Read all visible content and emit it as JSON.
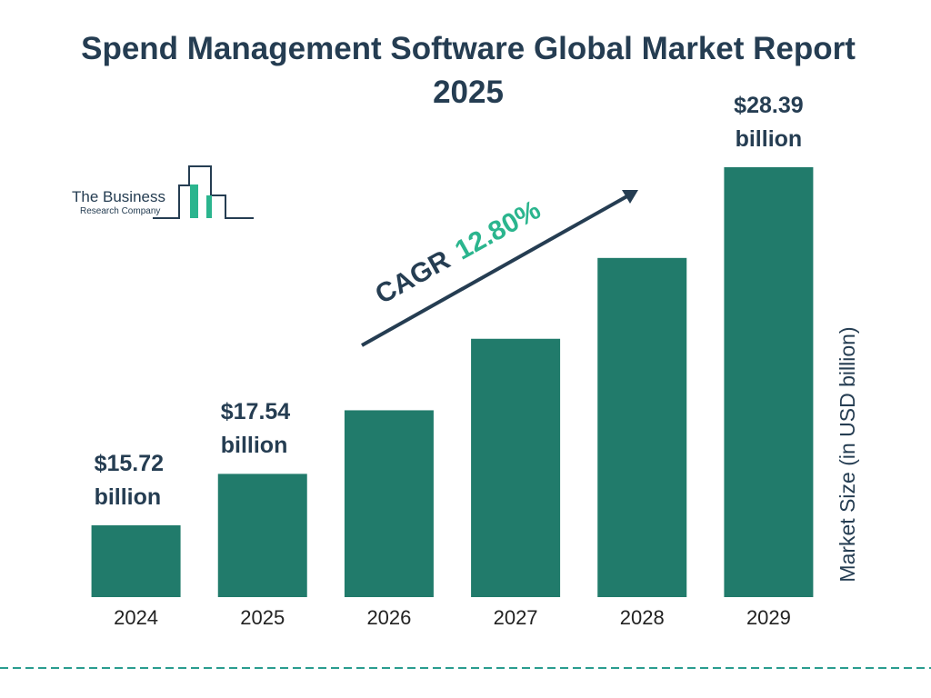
{
  "chart_data": {
    "type": "bar",
    "title": "Spend Management Software Global Market Report 2025",
    "categories": [
      "2024",
      "2025",
      "2026",
      "2027",
      "2028",
      "2029"
    ],
    "values": [
      15.72,
      17.54,
      19.79,
      22.32,
      25.18,
      28.39
    ],
    "value_labels": [
      "$15.72 billion",
      "$17.54 billion",
      null,
      null,
      null,
      "$28.39 billion"
    ],
    "color": "#217b6b",
    "y_label": "Market Size (in USD billion)",
    "annotation": {
      "label": "CAGR",
      "value": "12.80%"
    },
    "logo": {
      "line1": "The Business",
      "line2": "Research Company"
    }
  }
}
